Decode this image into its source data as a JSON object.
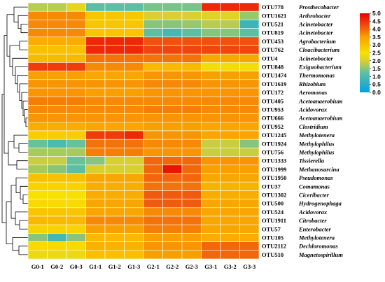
{
  "chart_data": {
    "type": "heatmap",
    "title": "",
    "xlabel": "",
    "ylabel": "",
    "columns": [
      "G0-1",
      "G0-2",
      "G0-3",
      "G1-1",
      "G1-2",
      "G1-3",
      "G2-1",
      "G2-2",
      "G2-3",
      "G3-1",
      "G3-2",
      "G3-3"
    ],
    "rows": [
      {
        "id": "OTU778",
        "genus": "Prosthecobacter",
        "values": [
          1.8,
          1.8,
          2.2,
          1.2,
          1.2,
          1.2,
          1.4,
          1.4,
          1.4,
          4.6,
          4.6,
          4.6
        ]
      },
      {
        "id": "OTU1621",
        "genus": "Arthrobacter",
        "values": [
          3.7,
          3.7,
          3.7,
          2.9,
          2.9,
          2.9,
          2.0,
          2.0,
          2.0,
          2.1,
          2.1,
          1.6
        ]
      },
      {
        "id": "OTU521",
        "genus": "Acinetobacter",
        "values": [
          3.7,
          3.7,
          3.7,
          2.9,
          2.9,
          2.9,
          1.5,
          1.5,
          1.6,
          1.8,
          1.8,
          0.8
        ]
      },
      {
        "id": "OTU819",
        "genus": "Acinetobacter",
        "values": [
          3.7,
          3.7,
          3.7,
          2.9,
          2.9,
          2.9,
          1.2,
          0.9,
          1.2,
          1.5,
          1.5,
          1.2
        ]
      },
      {
        "id": "OTU453",
        "genus": "Agrobacterium",
        "values": [
          3.3,
          3.3,
          3.3,
          4.6,
          4.6,
          4.6,
          4.2,
          4.2,
          4.2,
          4.2,
          4.2,
          4.2
        ]
      },
      {
        "id": "OTU762",
        "genus": "Cloacibacterium",
        "values": [
          3.0,
          3.0,
          3.0,
          4.6,
          4.6,
          4.6,
          4.3,
          4.3,
          4.3,
          4.3,
          4.3,
          4.3
        ]
      },
      {
        "id": "OTU4",
        "genus": "Acinetobacter",
        "values": [
          3.1,
          3.1,
          3.1,
          3.9,
          3.9,
          3.9,
          3.9,
          3.9,
          3.9,
          3.4,
          3.4,
          3.4
        ]
      },
      {
        "id": "OTU848",
        "genus": "Exiguobacterium",
        "values": [
          4.4,
          4.4,
          4.4,
          3.7,
          3.7,
          3.7,
          3.1,
          3.1,
          3.1,
          2.4,
          2.4,
          2.4
        ]
      },
      {
        "id": "OTU1474",
        "genus": "Thermomonas",
        "values": [
          3.5,
          3.5,
          3.5,
          3.4,
          3.4,
          3.4,
          3.6,
          3.6,
          3.6,
          3.5,
          3.5,
          3.5
        ]
      },
      {
        "id": "OTU1619",
        "genus": "Rhizobium",
        "values": [
          3.6,
          3.6,
          3.6,
          3.6,
          3.6,
          3.6,
          3.7,
          3.7,
          3.7,
          3.6,
          3.6,
          3.6
        ]
      },
      {
        "id": "OTU172",
        "genus": "Aeromonas",
        "values": [
          3.6,
          3.6,
          3.6,
          3.5,
          3.5,
          3.5,
          3.6,
          3.6,
          3.6,
          3.6,
          3.6,
          3.6
        ]
      },
      {
        "id": "OTU405",
        "genus": "Acetoanaerobium",
        "values": [
          3.8,
          3.8,
          3.8,
          3.7,
          3.7,
          3.7,
          3.7,
          3.7,
          3.7,
          3.7,
          3.7,
          3.7
        ]
      },
      {
        "id": "OTU953",
        "genus": "Acidovorax",
        "values": [
          3.7,
          3.7,
          3.7,
          3.7,
          3.7,
          3.7,
          3.8,
          3.8,
          3.8,
          3.7,
          3.7,
          3.7
        ]
      },
      {
        "id": "OTU666",
        "genus": "Acetoanaerobium",
        "values": [
          3.6,
          3.6,
          3.6,
          3.6,
          3.6,
          3.6,
          3.6,
          3.6,
          3.6,
          3.6,
          3.6,
          3.6
        ]
      },
      {
        "id": "OTU952",
        "genus": "Clostridium",
        "values": [
          3.3,
          3.3,
          3.3,
          3.4,
          3.4,
          3.4,
          3.5,
          3.5,
          3.5,
          3.4,
          3.4,
          3.4
        ]
      },
      {
        "id": "OTU1245",
        "genus": "Methylotenera",
        "values": [
          2.8,
          2.8,
          2.8,
          4.4,
          4.4,
          4.6,
          3.6,
          3.6,
          3.6,
          3.4,
          3.4,
          3.4
        ]
      },
      {
        "id": "OTU1924",
        "genus": "Methylophilus",
        "values": [
          1.3,
          1.0,
          1.3,
          3.9,
          3.9,
          3.9,
          3.7,
          3.7,
          3.7,
          1.9,
          1.9,
          1.5
        ]
      },
      {
        "id": "OTU756",
        "genus": "Methylophilus",
        "values": [
          1.7,
          1.7,
          1.7,
          3.8,
          3.8,
          3.8,
          3.6,
          3.6,
          3.6,
          1.9,
          1.9,
          1.9
        ]
      },
      {
        "id": "OTU1333",
        "genus": "Tissierella",
        "values": [
          1.9,
          1.9,
          1.3,
          1.5,
          2.0,
          2.0,
          4.0,
          4.0,
          4.0,
          3.6,
          3.6,
          3.6
        ]
      },
      {
        "id": "OTU1999",
        "genus": "Methanosarcina",
        "values": [
          1.7,
          1.5,
          1.2,
          2.0,
          2.0,
          2.0,
          4.0,
          4.8,
          4.0,
          3.5,
          3.5,
          3.5
        ]
      },
      {
        "id": "OTU1950",
        "genus": "Pseudomonas",
        "values": [
          3.0,
          3.0,
          3.0,
          3.4,
          3.4,
          3.4,
          4.0,
          4.0,
          4.0,
          3.4,
          3.4,
          3.4
        ]
      },
      {
        "id": "OTU37",
        "genus": "Comamonas",
        "values": [
          2.7,
          2.7,
          2.7,
          3.3,
          3.3,
          3.3,
          3.9,
          3.9,
          3.9,
          3.2,
          3.2,
          3.2
        ]
      },
      {
        "id": "OTU1302",
        "genus": "Ciceribacter",
        "values": [
          2.5,
          2.5,
          2.5,
          3.3,
          3.3,
          3.3,
          4.1,
          4.1,
          4.1,
          3.3,
          3.3,
          3.3
        ]
      },
      {
        "id": "OTU500",
        "genus": "Hydrogenophaga",
        "values": [
          2.6,
          2.6,
          2.6,
          3.4,
          3.4,
          3.4,
          4.1,
          4.1,
          4.1,
          3.4,
          3.4,
          3.4
        ]
      },
      {
        "id": "OTU524",
        "genus": "Acidovorax",
        "values": [
          2.9,
          2.9,
          2.9,
          3.4,
          3.4,
          3.4,
          3.7,
          3.7,
          3.7,
          3.4,
          3.4,
          3.4
        ]
      },
      {
        "id": "OTU1911",
        "genus": "Citrobacter",
        "values": [
          3.1,
          3.1,
          3.1,
          3.7,
          3.7,
          3.7,
          3.9,
          3.9,
          3.9,
          3.4,
          3.4,
          3.4
        ]
      },
      {
        "id": "OTU57",
        "genus": "Enterobacter",
        "values": [
          2.7,
          2.7,
          2.7,
          3.5,
          3.5,
          3.5,
          3.8,
          3.8,
          3.8,
          3.4,
          3.4,
          3.4
        ]
      },
      {
        "id": "OTU105",
        "genus": "Methylotenera",
        "values": [
          1.5,
          0.9,
          1.5,
          3.1,
          3.1,
          3.1,
          3.5,
          3.5,
          3.5,
          3.3,
          3.3,
          3.3
        ]
      },
      {
        "id": "OTU2112",
        "genus": "Dechloromonas",
        "values": [
          2.6,
          2.6,
          2.6,
          3.2,
          3.2,
          3.2,
          3.6,
          3.6,
          3.6,
          4.0,
          4.0,
          4.0
        ]
      },
      {
        "id": "OTU510",
        "genus": "Magnetospirillum",
        "values": [
          2.3,
          2.3,
          2.3,
          3.0,
          3.0,
          3.0,
          3.5,
          3.5,
          3.5,
          4.0,
          4.0,
          4.0
        ]
      }
    ],
    "colorbar": {
      "min": 0.0,
      "max": 5.0,
      "ticks": [
        "5.0",
        "4.5",
        "4.0",
        "3.5",
        "3.0",
        "2.5",
        "2.0",
        "1.5",
        "1.0",
        "0.5",
        "0.0"
      ],
      "stops": [
        {
          "v": 0.0,
          "color": "#00a0e6"
        },
        {
          "v": 1.25,
          "color": "#60c0a0"
        },
        {
          "v": 2.0,
          "color": "#d8d030"
        },
        {
          "v": 2.5,
          "color": "#f8e000"
        },
        {
          "v": 3.5,
          "color": "#f8a000"
        },
        {
          "v": 4.2,
          "color": "#f05010"
        },
        {
          "v": 5.0,
          "color": "#e80000"
        }
      ]
    }
  }
}
